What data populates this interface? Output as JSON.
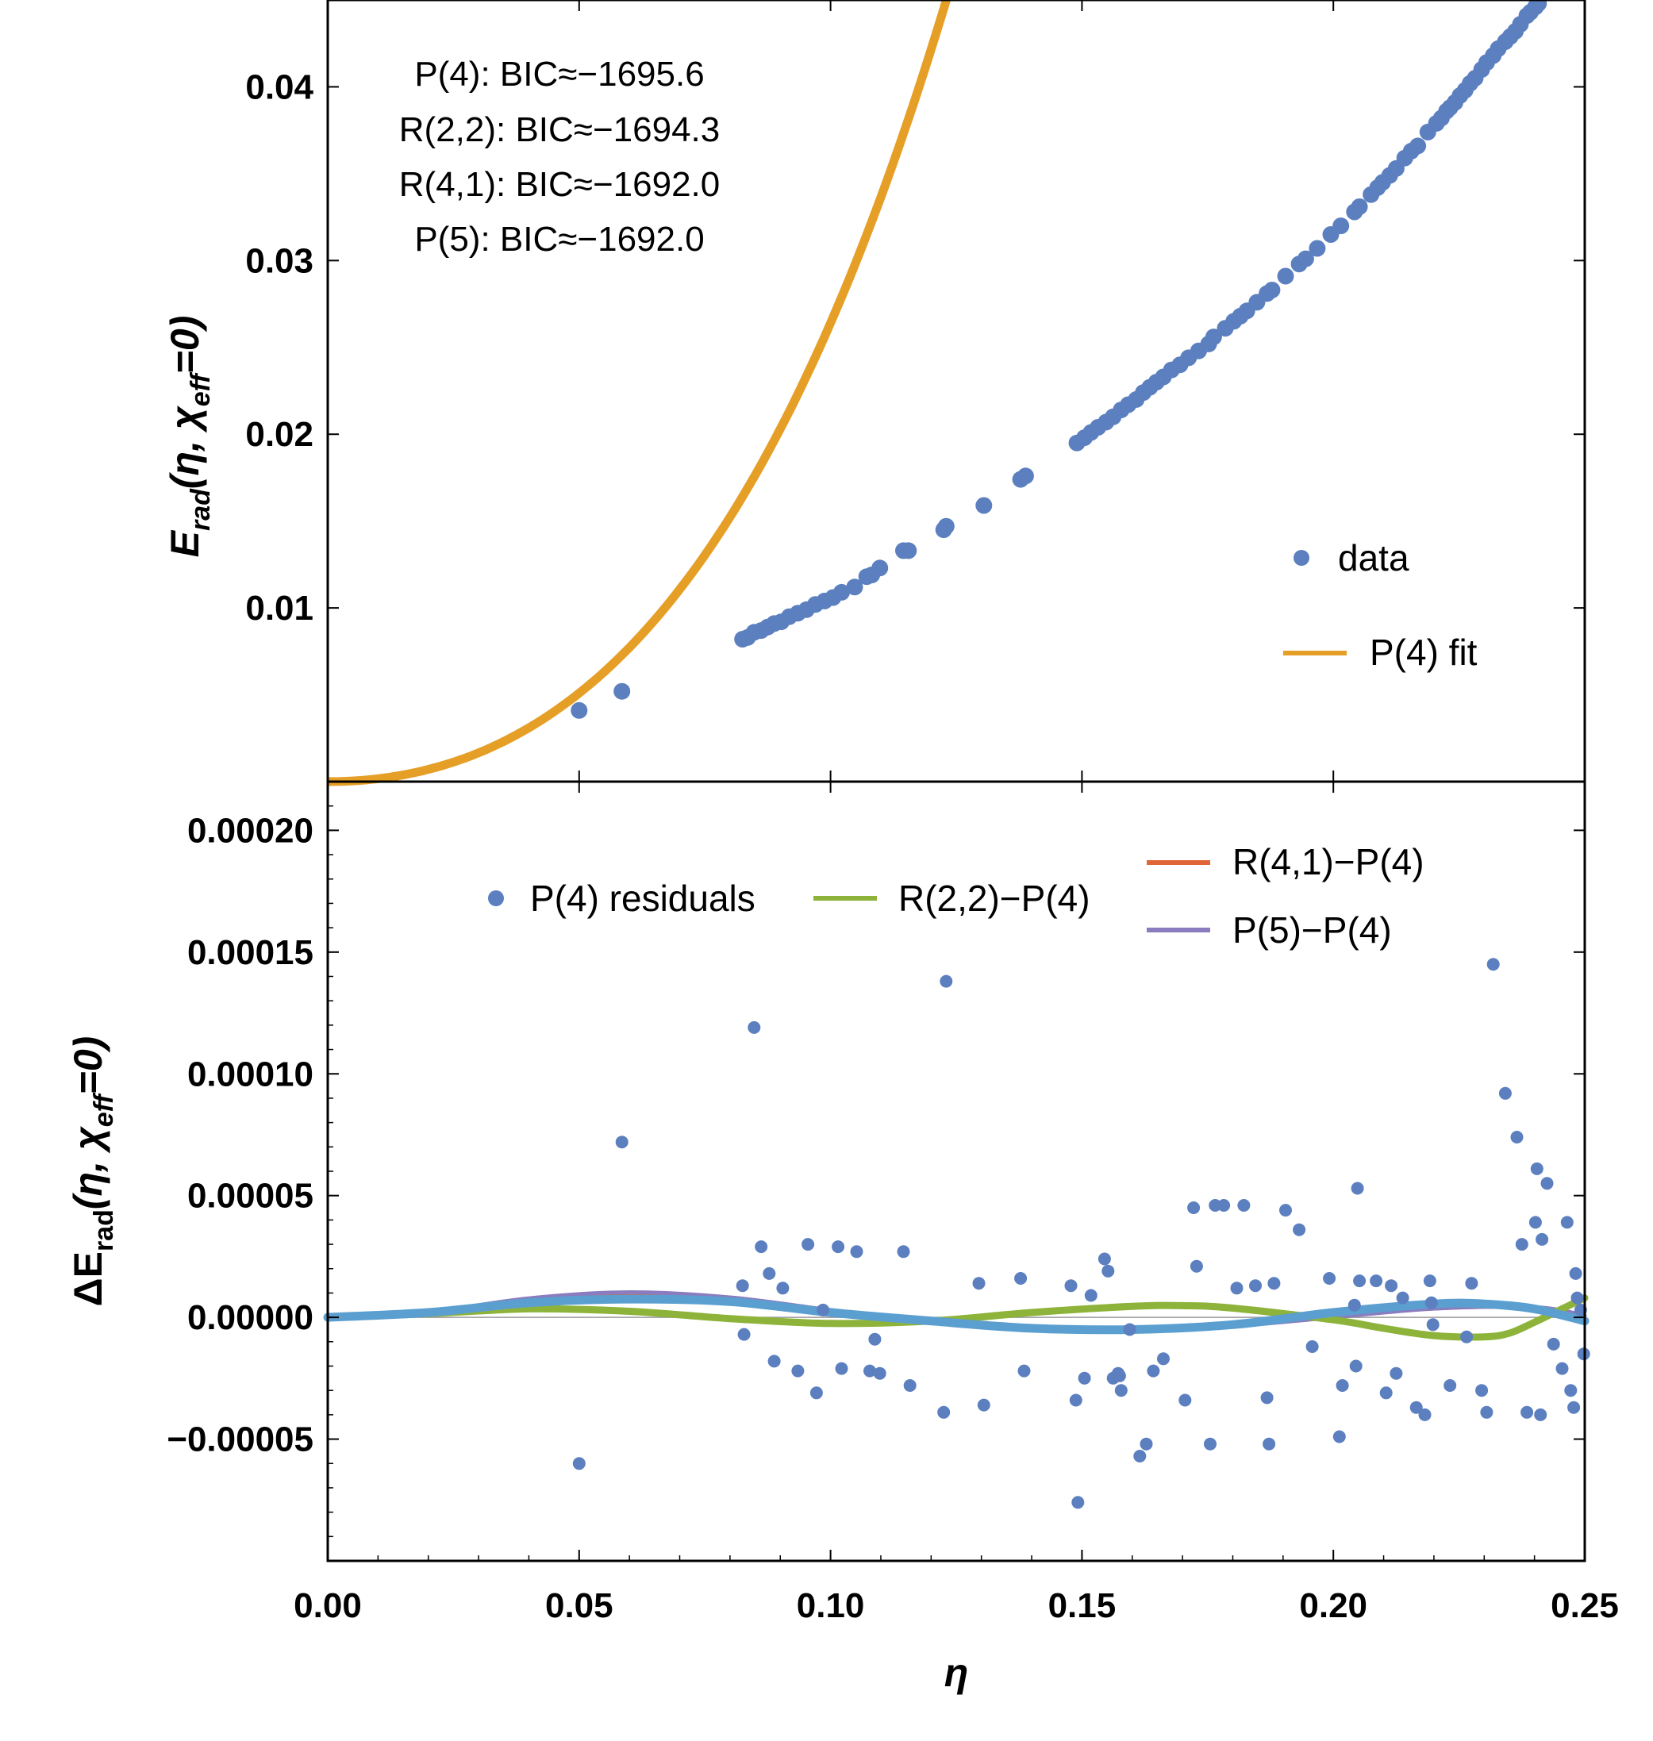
{
  "chart_data": [
    {
      "type": "scatter",
      "panel": "top",
      "ylabel": {
        "main": "E",
        "sub": "rad",
        "args": "(η, χ",
        "argsub": "eff",
        "tail": "=0)"
      },
      "ylim": [
        0,
        0.045
      ],
      "xlim": [
        0,
        0.25
      ],
      "yticks": [
        {
          "value": 0.01,
          "label": "0.01"
        },
        {
          "value": 0.02,
          "label": "0.02"
        },
        {
          "value": 0.03,
          "label": "0.03"
        },
        {
          "value": 0.04,
          "label": "0.04"
        }
      ],
      "annotations": [
        "P(4): BIC≈−1695.6",
        "R(2,2): BIC≈−1694.3",
        "R(4,1): BIC≈−1692.0",
        "P(5): BIC≈−1692.0"
      ],
      "legend": [
        {
          "label": "data",
          "kind": "point",
          "color": "#5b7fbf"
        },
        {
          "label": "P(4) fit",
          "kind": "line",
          "color": "#e69f26"
        }
      ],
      "fit": {
        "name": "P(4) fit",
        "color": "#e69f26"
      },
      "data_color": "#5b7fbf",
      "data_x": [
        0.05,
        0.0585,
        0.0825,
        0.0835,
        0.0848,
        0.0862,
        0.0875,
        0.0888,
        0.0902,
        0.0918,
        0.0935,
        0.0952,
        0.097,
        0.0988,
        0.1005,
        0.1022,
        0.1048,
        0.1072,
        0.1082,
        0.1098,
        0.1145,
        0.1155,
        0.1225,
        0.123,
        0.1305,
        0.1378,
        0.1388,
        0.149,
        0.1505,
        0.1518,
        0.1532,
        0.1548,
        0.1562,
        0.1578,
        0.1592,
        0.1608,
        0.1622,
        0.1635,
        0.1648,
        0.1662,
        0.1678,
        0.1695,
        0.1712,
        0.1732,
        0.1752,
        0.1762,
        0.1785,
        0.1802,
        0.1815,
        0.1828,
        0.1848,
        0.1868,
        0.1878,
        0.1905,
        0.1932,
        0.1945,
        0.1968,
        0.1995,
        0.2015,
        0.2042,
        0.2052,
        0.2075,
        0.2088,
        0.2098,
        0.2112,
        0.2125,
        0.2142,
        0.2155,
        0.2168,
        0.2188,
        0.2205,
        0.2215,
        0.2225,
        0.2232,
        0.2242,
        0.2252,
        0.2262,
        0.2272,
        0.2282,
        0.2295,
        0.2305,
        0.2318,
        0.2328,
        0.2342,
        0.2352,
        0.2362,
        0.2372,
        0.2385,
        0.2392,
        0.2402,
        0.2408
      ],
      "data_y": [
        0.0041,
        0.0052,
        0.0082,
        0.0083,
        0.0086,
        0.0087,
        0.0089,
        0.0091,
        0.0092,
        0.0095,
        0.0097,
        0.0099,
        0.0102,
        0.0104,
        0.0106,
        0.0109,
        0.0112,
        0.0118,
        0.0119,
        0.0123,
        0.0133,
        0.0133,
        0.0145,
        0.0147,
        0.0159,
        0.0174,
        0.0176,
        0.0195,
        0.0198,
        0.0201,
        0.0204,
        0.0207,
        0.021,
        0.0214,
        0.0217,
        0.022,
        0.0224,
        0.0227,
        0.023,
        0.0233,
        0.0237,
        0.024,
        0.0244,
        0.0248,
        0.0252,
        0.0256,
        0.0261,
        0.0265,
        0.0268,
        0.0271,
        0.0276,
        0.0281,
        0.0283,
        0.0291,
        0.0298,
        0.0301,
        0.0307,
        0.0315,
        0.032,
        0.0328,
        0.0331,
        0.0338,
        0.0342,
        0.0345,
        0.0349,
        0.0353,
        0.0359,
        0.0363,
        0.0366,
        0.0374,
        0.0379,
        0.0382,
        0.0386,
        0.0388,
        0.0391,
        0.0395,
        0.0398,
        0.0402,
        0.0405,
        0.041,
        0.0414,
        0.0418,
        0.0422,
        0.0426,
        0.0429,
        0.0432,
        0.0436,
        0.0441,
        0.0443,
        0.0446,
        0.0448
      ]
    },
    {
      "type": "scatter",
      "panel": "bottom",
      "xlabel": "η",
      "ylabel": {
        "main": "ΔE",
        "sub": "rad",
        "args": "(η, χ",
        "argsub": "eff",
        "tail": "=0)"
      },
      "xlim": [
        0,
        0.25
      ],
      "ylim": [
        -0.0001,
        0.00022
      ],
      "xticks": [
        {
          "value": 0,
          "label": "0.00"
        },
        {
          "value": 0.05,
          "label": "0.05"
        },
        {
          "value": 0.1,
          "label": "0.10"
        },
        {
          "value": 0.15,
          "label": "0.15"
        },
        {
          "value": 0.2,
          "label": "0.20"
        },
        {
          "value": 0.25,
          "label": "0.25"
        }
      ],
      "yticks": [
        {
          "value": -5e-05,
          "label": "−0.00005"
        },
        {
          "value": 0,
          "label": "0.00000"
        },
        {
          "value": 5e-05,
          "label": "0.00005"
        },
        {
          "value": 0.0001,
          "label": "0.00010"
        },
        {
          "value": 0.00015,
          "label": "0.00015"
        },
        {
          "value": 0.0002,
          "label": "0.00020"
        }
      ],
      "legend": [
        {
          "label": "P(4) residuals",
          "kind": "point",
          "color": "#5b7fbf"
        },
        {
          "label": "R(2,2)−P(4)",
          "kind": "line",
          "color": "#8db33a"
        },
        {
          "label": "R(4,1)−P(4)",
          "kind": "line",
          "color": "#e0663a"
        },
        {
          "label": "P(5)−P(4)",
          "kind": "line",
          "color": "#8a7cbe"
        }
      ],
      "residuals_color": "#5b7fbf",
      "residuals_x": [
        0.05,
        0.0585,
        0.0825,
        0.0828,
        0.0848,
        0.0862,
        0.0878,
        0.0888,
        0.0905,
        0.0935,
        0.0955,
        0.0972,
        0.0985,
        0.1015,
        0.1022,
        0.1052,
        0.1078,
        0.1088,
        0.1098,
        0.1145,
        0.1158,
        0.1225,
        0.123,
        0.1295,
        0.1305,
        0.1378,
        0.1385,
        0.1478,
        0.1488,
        0.1492,
        0.1505,
        0.1518,
        0.1545,
        0.1552,
        0.1562,
        0.1572,
        0.1575,
        0.1578,
        0.1595,
        0.1615,
        0.1628,
        0.1642,
        0.1662,
        0.1705,
        0.1722,
        0.1728,
        0.1755,
        0.1765,
        0.1782,
        0.1808,
        0.1822,
        0.1845,
        0.1868,
        0.1872,
        0.1882,
        0.1905,
        0.1932,
        0.1958,
        0.1992,
        0.2012,
        0.2018,
        0.2042,
        0.2045,
        0.2048,
        0.2052,
        0.2085,
        0.2105,
        0.2115,
        0.2125,
        0.2138,
        0.2165,
        0.2182,
        0.2192,
        0.2195,
        0.2198,
        0.2232,
        0.2265,
        0.2275,
        0.2295,
        0.2305,
        0.2318,
        0.2342,
        0.2365,
        0.2375,
        0.2385,
        0.2402,
        0.2405,
        0.2412,
        0.2415,
        0.2425,
        0.2438,
        0.2455,
        0.2465,
        0.2472,
        0.2478,
        0.2482,
        0.2485,
        0.2492,
        0.2498
      ],
      "residuals_y": [
        -6e-05,
        7.2e-05,
        1.3e-05,
        -7e-06,
        0.000119,
        2.9e-05,
        1.8e-05,
        -1.8e-05,
        1.2e-05,
        -2.2e-05,
        3e-05,
        -3.1e-05,
        3e-06,
        2.9e-05,
        -2.1e-05,
        2.7e-05,
        -2.2e-05,
        -9e-06,
        -2.3e-05,
        2.7e-05,
        -2.8e-05,
        -3.9e-05,
        0.000138,
        1.4e-05,
        -3.6e-05,
        1.6e-05,
        -2.2e-05,
        1.3e-05,
        -3.4e-05,
        -7.6e-05,
        -2.5e-05,
        9e-06,
        2.4e-05,
        1.9e-05,
        -2.5e-05,
        -2.3e-05,
        -2.4e-05,
        -3e-05,
        -5e-06,
        -5.7e-05,
        -5.2e-05,
        -2.2e-05,
        -1.7e-05,
        -3.4e-05,
        4.5e-05,
        2.1e-05,
        -5.2e-05,
        4.6e-05,
        4.6e-05,
        1.2e-05,
        4.6e-05,
        1.3e-05,
        -3.3e-05,
        -5.2e-05,
        1.4e-05,
        4.4e-05,
        3.6e-05,
        -1.2e-05,
        1.6e-05,
        -4.9e-05,
        -2.8e-05,
        5e-06,
        -2e-05,
        5.3e-05,
        1.5e-05,
        1.5e-05,
        -3.1e-05,
        1.3e-05,
        -2.3e-05,
        8e-06,
        -3.7e-05,
        -4e-05,
        1.5e-05,
        6e-06,
        -3e-06,
        -2.8e-05,
        -8e-06,
        1.4e-05,
        -3e-05,
        -3.9e-05,
        0.000145,
        9.2e-05,
        7.4e-05,
        3e-05,
        -3.9e-05,
        3.9e-05,
        6.1e-05,
        -4e-05,
        3.2e-05,
        5.5e-05,
        -1.1e-05,
        -2.1e-05,
        3.9e-05,
        -3e-05,
        -3.7e-05,
        1.8e-05,
        8e-06,
        3e-06,
        -1.5e-05
      ],
      "curves": [
        {
          "name": "R(4,1)−P(4)",
          "color": "#e0663a",
          "width": 4,
          "x": [
            0,
            0.02,
            0.04,
            0.06,
            0.08,
            0.1,
            0.12,
            0.14,
            0.16,
            0.18,
            0.2,
            0.22,
            0.24,
            0.25
          ],
          "y": [
            0,
            2e-06,
            7.5e-06,
            9.8e-06,
            7.8e-06,
            3e-06,
            -1.5e-06,
            -4.5e-06,
            -5e-06,
            -3.5e-06,
            0,
            3.5e-06,
            4e-06,
            1e-06
          ]
        },
        {
          "name": "P(5)−P(4)",
          "color": "#8a7cbe",
          "width": 5,
          "x": [
            0,
            0.02,
            0.04,
            0.06,
            0.08,
            0.1,
            0.12,
            0.14,
            0.16,
            0.18,
            0.2,
            0.22,
            0.24,
            0.25
          ],
          "y": [
            0,
            2.2e-06,
            7.8e-06,
            1.03e-05,
            8.2e-06,
            3e-06,
            -1.5e-06,
            -4.7e-06,
            -5.2e-06,
            -3.6e-06,
            0,
            3.6e-06,
            4.2e-06,
            8e-07
          ]
        },
        {
          "name": "R(2,2)−P(4)",
          "color": "#8db33a",
          "width": 9,
          "x": [
            0,
            0.02,
            0.04,
            0.06,
            0.08,
            0.1,
            0.12,
            0.14,
            0.16,
            0.17,
            0.18,
            0.2,
            0.21,
            0.22,
            0.23,
            0.235,
            0.24,
            0.245,
            0.25
          ],
          "y": [
            0,
            1.5e-06,
            3.5e-06,
            2.5e-06,
            -5e-07,
            -2.5e-06,
            -1.5e-06,
            2e-06,
            4.5e-06,
            4.8e-06,
            3.8e-06,
            -1e-06,
            -4.5e-06,
            -7.5e-06,
            -8e-06,
            -6.5e-06,
            -2e-06,
            3e-06,
            8e-06
          ]
        },
        {
          "name": "P(4) fit ± band",
          "color": "#5b9fd0",
          "width": 11,
          "x": [
            0,
            0.02,
            0.04,
            0.06,
            0.08,
            0.1,
            0.12,
            0.14,
            0.16,
            0.18,
            0.2,
            0.22,
            0.23,
            0.24,
            0.25
          ],
          "y": [
            0,
            2e-06,
            6e-06,
            7.5e-06,
            6.5e-06,
            2e-06,
            -1.5e-06,
            -4.5e-06,
            -5e-06,
            -3e-06,
            2e-06,
            5.5e-06,
            5.5e-06,
            3.5e-06,
            -1.5e-06
          ]
        }
      ]
    }
  ]
}
